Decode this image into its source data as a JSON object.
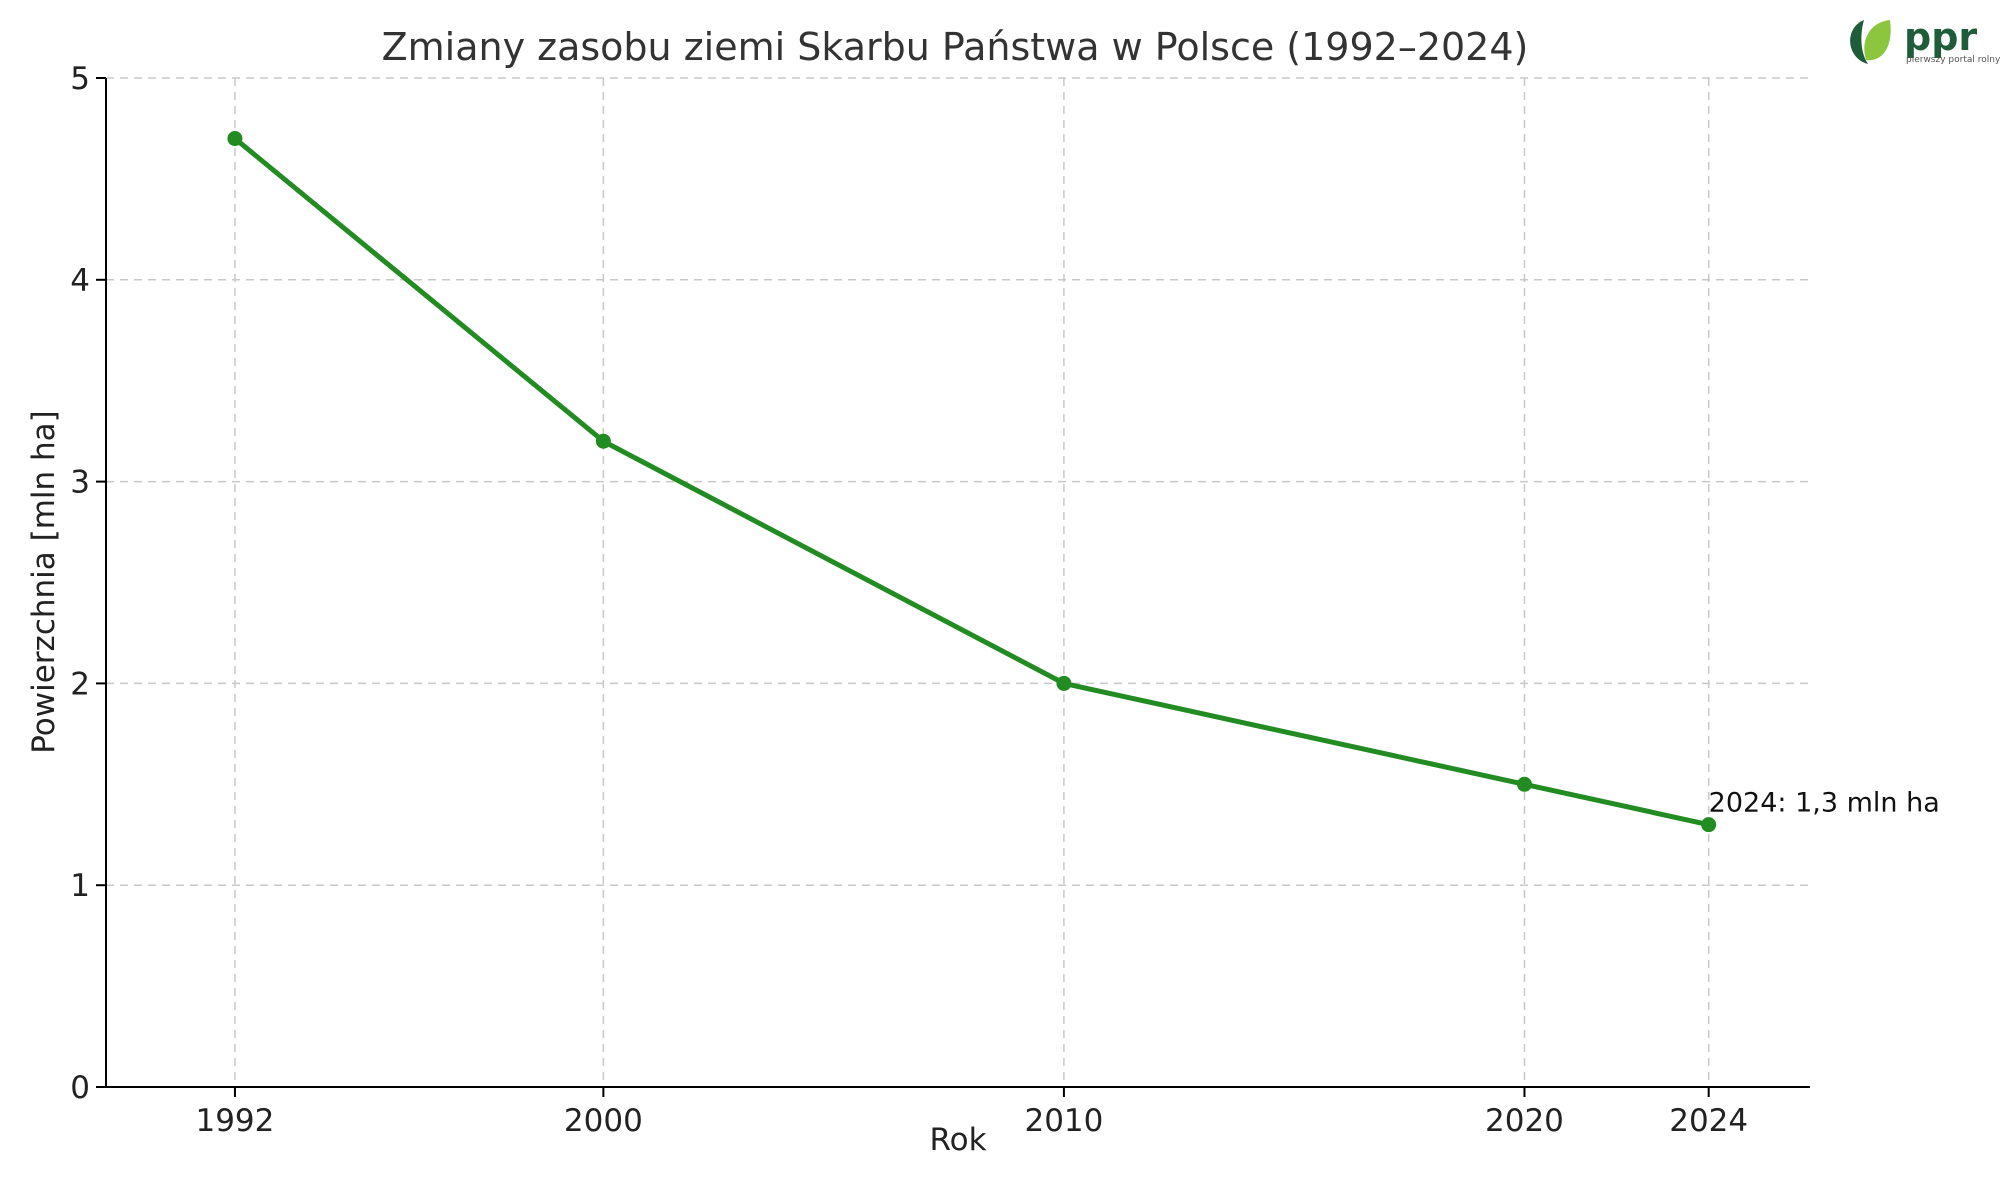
{
  "chart_data": {
    "type": "line",
    "title": "Zmiany zasobu ziemi Skarbu Państwa w Polsce (1992–2024)",
    "xlabel": "Rok",
    "ylabel": "Powierzchnia [mln ha]",
    "xlim": [
      1989.2,
      2026.2
    ],
    "ylim": [
      0,
      5
    ],
    "x_ticks": [
      1992,
      2000,
      2010,
      2020,
      2024
    ],
    "x_tick_labels": [
      "1992",
      "2000",
      "2010",
      "2020",
      "2024"
    ],
    "y_ticks": [
      0,
      1,
      2,
      3,
      4,
      5
    ],
    "y_tick_labels": [
      "0",
      "1",
      "2",
      "3",
      "4",
      "5"
    ],
    "grid": true,
    "series": [
      {
        "color": "#228b22",
        "x": [
          1992,
          2000,
          2010,
          2020,
          2024
        ],
        "y": [
          4.7,
          3.2,
          2.0,
          1.5,
          1.3
        ]
      }
    ],
    "annotations": [
      {
        "x": 2024,
        "y": 1.3,
        "text": "2024: 1,3 mln ha"
      }
    ]
  },
  "logo": {
    "name": "ppr",
    "tagline": "pierwszy portal rolny",
    "colors": {
      "dark": "#1f5c3a",
      "light": "#8cc63f"
    }
  }
}
